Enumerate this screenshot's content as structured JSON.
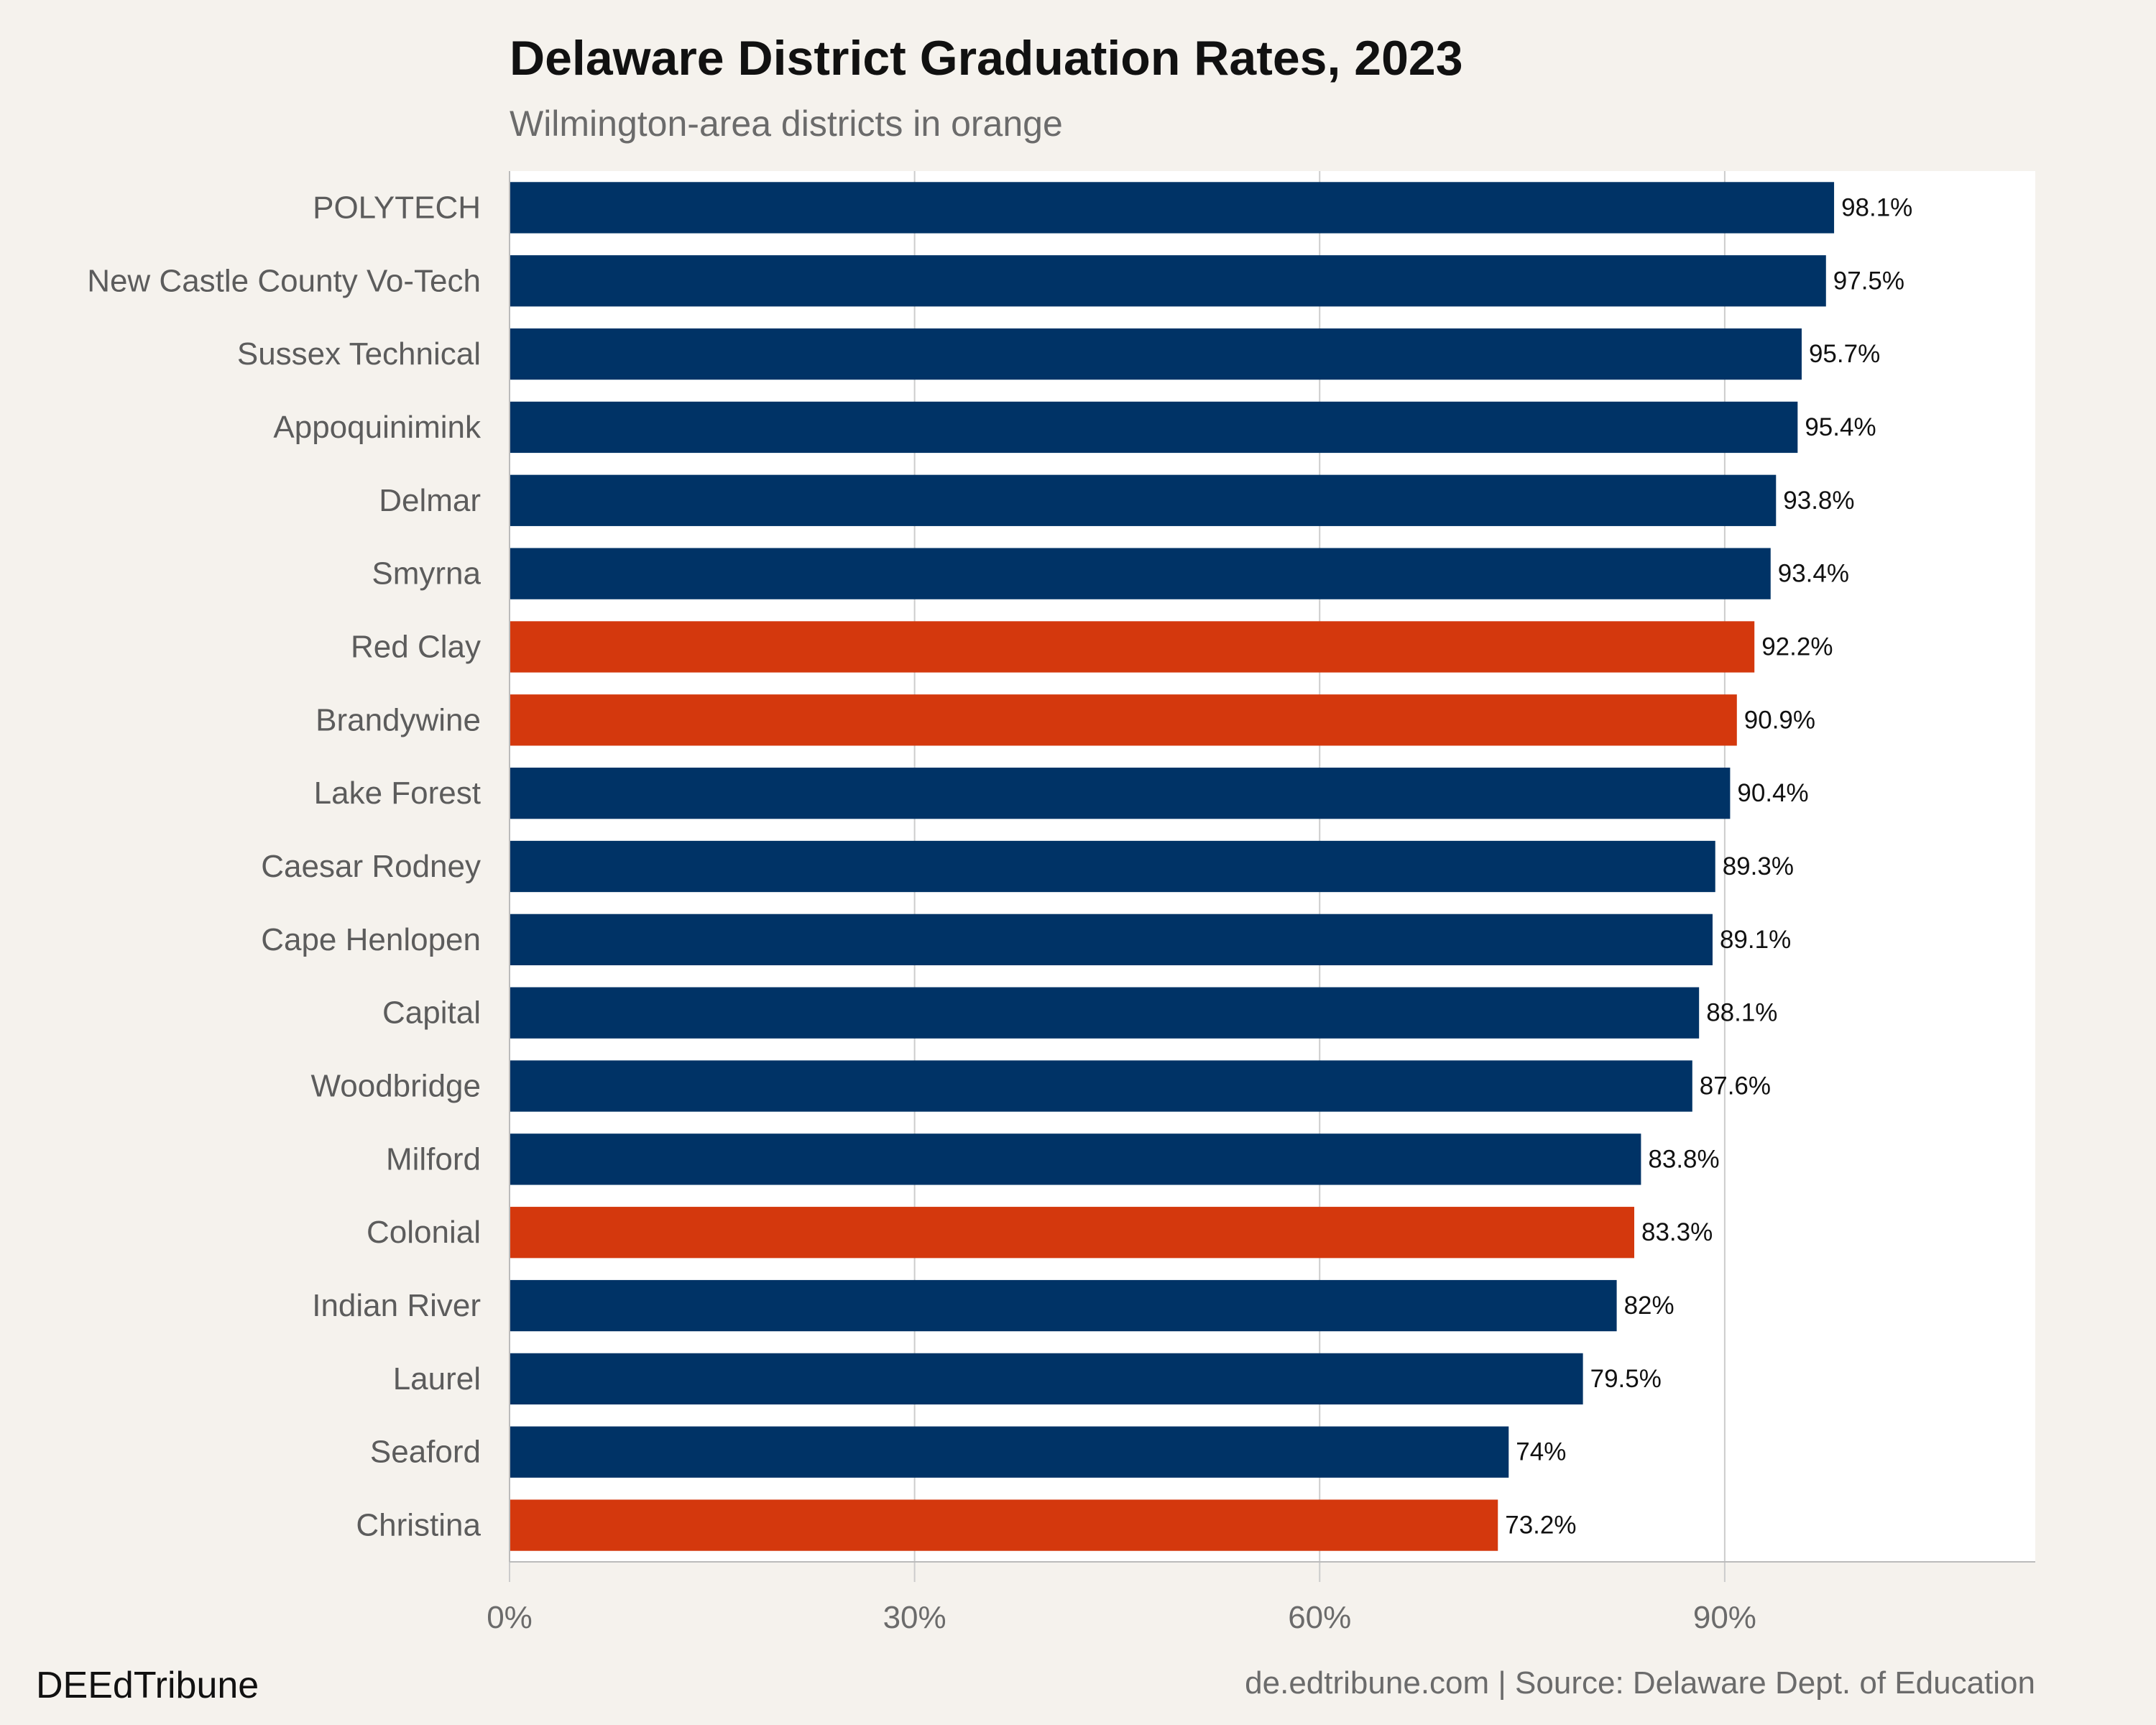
{
  "header": {
    "title": "Delaware District Graduation Rates, 2023",
    "subtitle": "Wilmington-area districts in orange"
  },
  "footer": {
    "brand": "DEEdTribune",
    "source": "de.edtribune.com | Source: Delaware Dept. of Education"
  },
  "colors": {
    "default_bar": "#003366",
    "highlight_bar": "#d4380d",
    "plot_background": "#ffffff",
    "page_background": "#f5f2ed",
    "gridline": "#cccccc"
  },
  "chart_data": {
    "type": "bar",
    "orientation": "horizontal",
    "title": "Delaware District Graduation Rates, 2023",
    "subtitle": "Wilmington-area districts in orange",
    "xlabel": "",
    "ylabel": "",
    "xlim": [
      0,
      113
    ],
    "x_ticks": [
      0,
      30,
      60,
      90
    ],
    "x_tick_labels": [
      "0%",
      "30%",
      "60%",
      "90%"
    ],
    "grid": "vertical",
    "legend": "none",
    "categories": [
      "POLYTECH",
      "New Castle County Vo-Tech",
      "Sussex Technical",
      "Appoquinimink",
      "Delmar",
      "Smyrna",
      "Red Clay",
      "Brandywine",
      "Lake Forest",
      "Caesar Rodney",
      "Cape Henlopen",
      "Capital",
      "Woodbridge",
      "Milford",
      "Colonial",
      "Indian River",
      "Laurel",
      "Seaford",
      "Christina"
    ],
    "values": [
      98.1,
      97.5,
      95.7,
      95.4,
      93.8,
      93.4,
      92.2,
      90.9,
      90.4,
      89.3,
      89.1,
      88.1,
      87.6,
      83.8,
      83.3,
      82,
      79.5,
      74,
      73.2
    ],
    "value_labels": [
      "98.1%",
      "97.5%",
      "95.7%",
      "95.4%",
      "93.8%",
      "93.4%",
      "92.2%",
      "90.9%",
      "90.4%",
      "89.3%",
      "89.1%",
      "88.1%",
      "87.6%",
      "83.8%",
      "83.3%",
      "82%",
      "79.5%",
      "74%",
      "73.2%"
    ],
    "highlighted": [
      false,
      false,
      false,
      false,
      false,
      false,
      true,
      true,
      false,
      false,
      false,
      false,
      false,
      false,
      true,
      false,
      false,
      false,
      true
    ]
  }
}
